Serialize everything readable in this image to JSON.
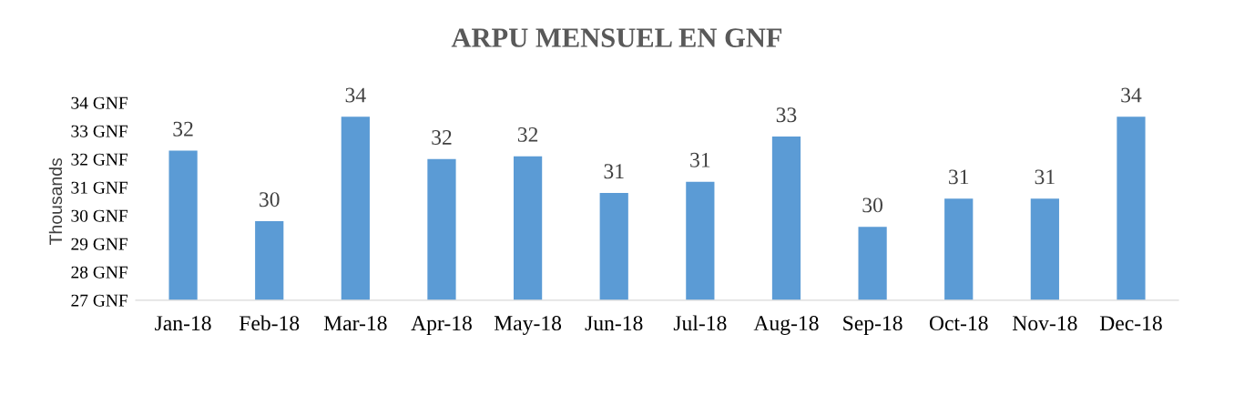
{
  "chart_data": {
    "type": "bar",
    "title": "ARPU MENSUEL EN GNF",
    "ylabel": "Thousands",
    "categories": [
      "Jan-18",
      "Feb-18",
      "Mar-18",
      "Apr-18",
      "May-18",
      "Jun-18",
      "Jul-18",
      "Aug-18",
      "Sep-18",
      "Oct-18",
      "Nov-18",
      "Dec-18"
    ],
    "values": [
      32.3,
      29.8,
      33.5,
      32.0,
      32.1,
      30.8,
      31.2,
      32.8,
      29.6,
      30.6,
      30.6,
      33.5
    ],
    "value_labels": [
      "32",
      "30",
      "34",
      "32",
      "32",
      "31",
      "31",
      "33",
      "30",
      "31",
      "31",
      "34"
    ],
    "color": "#5b9bd5",
    "ylim": [
      27,
      34
    ],
    "yticks": [
      {
        "value": 27,
        "label": "27 GNF"
      },
      {
        "value": 28,
        "label": "28 GNF"
      },
      {
        "value": 29,
        "label": "29 GNF"
      },
      {
        "value": 30,
        "label": "30 GNF"
      },
      {
        "value": 31,
        "label": "31 GNF"
      },
      {
        "value": 32,
        "label": "32 GNF"
      },
      {
        "value": 33,
        "label": "33 GNF"
      },
      {
        "value": 34,
        "label": "34 GNF"
      }
    ],
    "grid": false,
    "legend": false
  }
}
